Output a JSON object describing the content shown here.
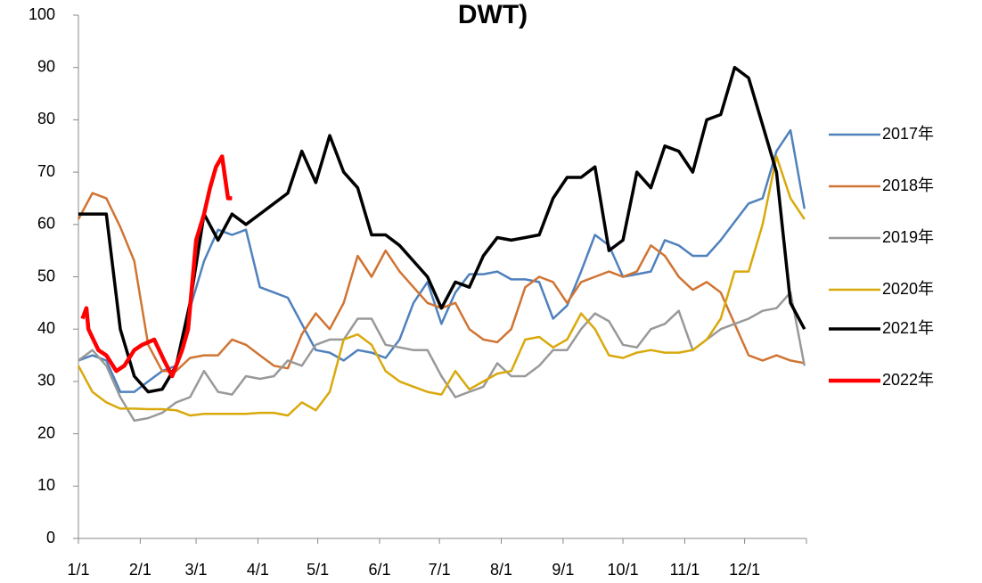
{
  "chart_data": {
    "type": "line",
    "title": "DWT)",
    "x": [
      0,
      7,
      14,
      21,
      28,
      35,
      42,
      49,
      56,
      63,
      70,
      77,
      84,
      91,
      98,
      105,
      112,
      119,
      126,
      133,
      140,
      147,
      154,
      161,
      168,
      175,
      182,
      189,
      196,
      203,
      210,
      217,
      224,
      231,
      238,
      245,
      252,
      259,
      266,
      273,
      280,
      287,
      294,
      301,
      308,
      315,
      322,
      329,
      336,
      343,
      350,
      357,
      364
    ],
    "xlim": [
      0,
      365
    ],
    "xticks": [
      {
        "value": 0,
        "label": "1/1"
      },
      {
        "value": 31,
        "label": "2/1"
      },
      {
        "value": 59,
        "label": "3/1"
      },
      {
        "value": 90,
        "label": "4/1"
      },
      {
        "value": 120,
        "label": "5/1"
      },
      {
        "value": 151,
        "label": "6/1"
      },
      {
        "value": 181,
        "label": "7/1"
      },
      {
        "value": 212,
        "label": "8/1"
      },
      {
        "value": 243,
        "label": "9/1"
      },
      {
        "value": 273,
        "label": "10/1"
      },
      {
        "value": 304,
        "label": "11/1"
      },
      {
        "value": 334,
        "label": "12/1"
      }
    ],
    "ylim": [
      0,
      100
    ],
    "yticks": [
      0,
      10,
      20,
      30,
      40,
      50,
      60,
      70,
      80,
      90,
      100
    ],
    "grid": false,
    "legend": "right",
    "series": [
      {
        "name": "2017年",
        "color": "#4f81bd",
        "width": 2.5,
        "values": [
          34,
          35,
          34,
          28,
          28,
          30,
          32,
          33,
          44,
          53,
          59,
          58,
          59,
          48,
          47,
          46,
          41,
          36,
          35.5,
          34,
          36,
          35.5,
          34.5,
          38,
          45,
          49,
          41,
          47,
          50.5,
          50.5,
          51,
          49.5,
          49.5,
          49,
          42,
          44.5,
          51,
          58,
          56,
          50,
          50.5,
          51,
          57,
          56,
          54,
          54,
          57,
          60.5,
          64,
          65,
          74,
          78,
          63
        ]
      },
      {
        "name": "2018年",
        "color": "#d07433",
        "width": 2.5,
        "values": [
          61,
          66,
          65,
          59.5,
          53,
          37,
          32,
          32,
          34.5,
          35,
          35,
          38,
          37,
          35,
          33,
          32.5,
          39,
          43,
          40,
          45,
          54,
          50,
          55,
          51,
          48,
          45,
          44,
          45,
          40,
          38,
          37.5,
          40,
          48,
          50,
          49,
          45,
          49,
          50,
          51,
          50,
          51,
          56,
          54,
          50,
          47.5,
          49,
          47,
          41,
          35,
          34,
          35,
          34,
          33.5
        ]
      },
      {
        "name": "2019年",
        "color": "#999999",
        "width": 2.5,
        "values": [
          34,
          36,
          33,
          27,
          22.5,
          23,
          24,
          26,
          27,
          32,
          28,
          27.5,
          31,
          30.5,
          31,
          34,
          33,
          37,
          38,
          38,
          42,
          42,
          37,
          36.5,
          36,
          36,
          31,
          27,
          28,
          29,
          33.5,
          31,
          31,
          33,
          36,
          36,
          40,
          43,
          41.5,
          37,
          36.5,
          40,
          41,
          43.5,
          36,
          38,
          40,
          41,
          42,
          43.5,
          44,
          47,
          33
        ]
      },
      {
        "name": "2020年",
        "color": "#d9a90c",
        "width": 2.5,
        "values": [
          33,
          28,
          26,
          24.8,
          24.8,
          24.7,
          24.7,
          24.5,
          23.5,
          23.8,
          23.8,
          23.8,
          23.8,
          24,
          24,
          23.5,
          26,
          24.5,
          28,
          38,
          39,
          37,
          32,
          30,
          29,
          28,
          27.5,
          32,
          28.5,
          30,
          31.5,
          32,
          38,
          38.5,
          36.5,
          38,
          43,
          40,
          35,
          34.5,
          35.5,
          36,
          35.5,
          35.5,
          36,
          38,
          42,
          51,
          51,
          60,
          73,
          65,
          61
        ]
      },
      {
        "name": "2021年",
        "color": "#000000",
        "width": 3.5,
        "values": [
          62,
          62,
          62,
          40,
          31,
          28,
          28.5,
          33,
          45,
          62,
          57,
          62,
          60,
          62,
          64,
          66,
          74,
          68,
          77,
          70,
          67,
          58,
          58,
          56,
          53,
          50,
          44,
          49,
          48,
          54,
          57.5,
          57,
          57.5,
          58,
          65,
          69,
          69,
          71,
          55,
          57,
          70,
          67,
          75,
          74,
          70,
          80,
          81,
          90,
          88,
          79,
          70,
          45,
          40
        ]
      },
      {
        "name": "2022年",
        "color": "#ff0000",
        "width": 4.5,
        "x": [
          2,
          4,
          5,
          10,
          14,
          19,
          23,
          28,
          32,
          38,
          43,
          47,
          52,
          55,
          59,
          63,
          66,
          69,
          72,
          75,
          77
        ],
        "values": [
          42,
          44,
          40,
          36,
          35,
          32,
          33,
          36,
          37,
          38,
          34,
          31,
          36,
          40,
          57,
          62,
          67,
          71,
          73,
          65,
          65
        ]
      }
    ]
  }
}
